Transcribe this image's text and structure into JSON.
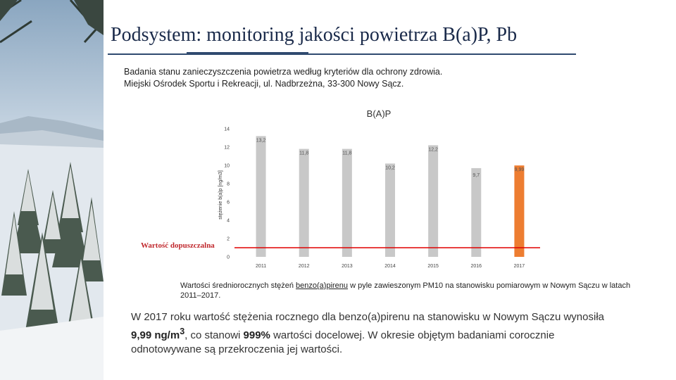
{
  "slide": {
    "title": "Podsystem: monitoring jakości powietrza B(a)P, Pb",
    "subtitle_line1": "Badania stanu zanieczyszczenia powietrza według kryteriów dla ochrony zdrowia.",
    "subtitle_line2": "Miejski Ośrodek Sportu i Rekreacji, ul. Nadbrzeżna, 33-300 Nowy Sącz."
  },
  "caption": {
    "pre": "Wartości średniorocznych stężeń ",
    "link": "benzo(a)pirenu",
    "post": " w pyle zawieszonym PM10 na stanowisku pomiarowym w Nowym Sączu w latach 2011–2017."
  },
  "summary": {
    "part1": "W 2017 roku wartość stężenia rocznego dla benzo(a)pirenu na stanowisku w Nowym Sączu wynosiła ",
    "value": "9,99 ng/m",
    "sup": "3",
    "part2": ", co stanowi ",
    "percent": "999%",
    "part3": " wartości docelowej. W okresie objętym badaniami corocznie odnotowywane są przekroczenia jej wartości."
  },
  "limit_label": "Wartość dopuszczalna",
  "colors": {
    "bar": "#c8c8c8",
    "highlight": "#ed7d31",
    "limit": "#e00000",
    "rule": "#2f4a6f"
  },
  "chart_data": {
    "type": "bar",
    "title": "B(A)P",
    "ylabel": "stężenie b(a)p [ng/m3]",
    "xlabel": "",
    "categories": [
      "2011",
      "2012",
      "2013",
      "2014",
      "2015",
      "2016",
      "2017"
    ],
    "values": [
      13.2,
      11.8,
      11.8,
      10.2,
      12.2,
      9.7,
      9.99
    ],
    "value_labels": [
      "13,2",
      "11,8",
      "11,8",
      "10,2",
      "12,2",
      "9,7",
      "9,99"
    ],
    "highlight_index": 6,
    "ylim": [
      0,
      14
    ],
    "yticks": [
      0,
      2,
      4,
      6,
      8,
      10,
      12,
      14
    ],
    "limit_value": 1,
    "grid": false
  }
}
